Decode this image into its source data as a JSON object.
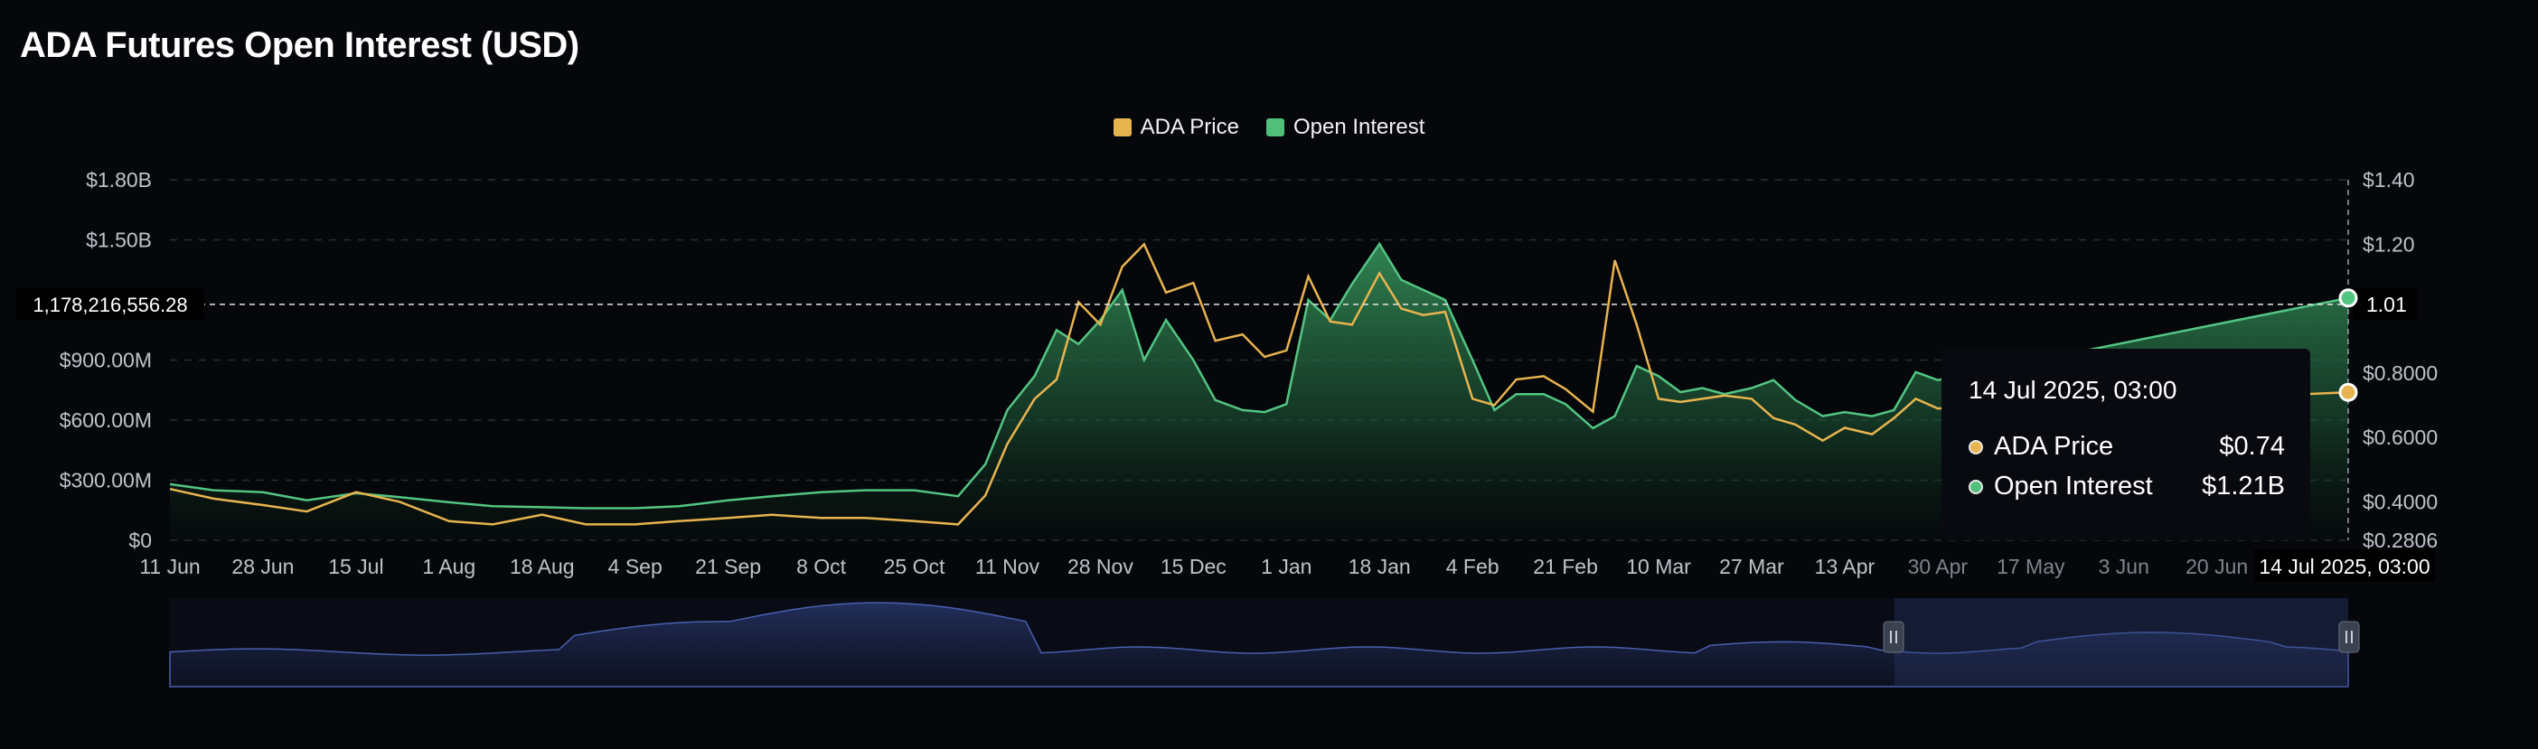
{
  "title": "ADA Futures Open Interest (USD)",
  "colors": {
    "price": "#e8b44f",
    "open_interest": "#3fae6a",
    "navigator": "#3c4f9a",
    "background": "#05070b"
  },
  "legend": [
    {
      "label": "ADA Price",
      "color": "#e8b44f"
    },
    {
      "label": "Open Interest",
      "color": "#4fbf7a"
    }
  ],
  "crosshair": {
    "left_value": "1,178,216,556.28",
    "right_value": "1.01",
    "x_value": "14 Jul 2025, 03:00"
  },
  "tooltip": {
    "date": "14 Jul 2025, 03:00",
    "rows": [
      {
        "label": "ADA Price",
        "value": "$0.74"
      },
      {
        "label": "Open Interest",
        "value": "$1.21B"
      }
    ]
  },
  "chart_data": {
    "type": "line",
    "title": "ADA Futures Open Interest (USD)",
    "x_ticks": [
      "11 Jun",
      "28 Jun",
      "15 Jul",
      "1 Aug",
      "18 Aug",
      "4 Sep",
      "21 Sep",
      "8 Oct",
      "25 Oct",
      "11 Nov",
      "28 Nov",
      "15 Dec",
      "1 Jan",
      "18 Jan",
      "4 Feb",
      "21 Feb",
      "10 Mar",
      "27 Mar",
      "13 Apr",
      "30 Apr",
      "17 May",
      "3 Jun",
      "20 Jun"
    ],
    "y_left_ticks": [
      "$1.80B",
      "$1.50B",
      "$900.00M",
      "$600.00M",
      "$300.00M",
      "$0"
    ],
    "y_left_tick_values": [
      1800000000,
      1500000000,
      900000000,
      600000000,
      300000000,
      0
    ],
    "y_right_ticks": [
      "$1.40",
      "$1.20",
      "$0.8000",
      "$0.6000",
      "$0.4000",
      "$0.2806"
    ],
    "y_right_tick_values": [
      1.4,
      1.2,
      0.8,
      0.6,
      0.4,
      0.2806
    ],
    "y_left_range": [
      0,
      1800000000
    ],
    "y_right_range": [
      0.2806,
      1.4
    ],
    "legend_position": "top-center",
    "grid": true,
    "series": [
      {
        "name": "Open Interest",
        "axis": "left",
        "points": [
          [
            "11 Jun",
            280000000
          ],
          [
            "19 Jun",
            250000000
          ],
          [
            "28 Jun",
            240000000
          ],
          [
            "6 Jul",
            200000000
          ],
          [
            "15 Jul",
            235000000
          ],
          [
            "23 Jul",
            215000000
          ],
          [
            "1 Aug",
            190000000
          ],
          [
            "9 Aug",
            170000000
          ],
          [
            "18 Aug",
            165000000
          ],
          [
            "26 Aug",
            160000000
          ],
          [
            "4 Sep",
            160000000
          ],
          [
            "12 Sep",
            170000000
          ],
          [
            "21 Sep",
            200000000
          ],
          [
            "29 Sep",
            220000000
          ],
          [
            "8 Oct",
            240000000
          ],
          [
            "16 Oct",
            250000000
          ],
          [
            "25 Oct",
            250000000
          ],
          [
            "2 Nov",
            220000000
          ],
          [
            "7 Nov",
            380000000
          ],
          [
            "11 Nov",
            650000000
          ],
          [
            "16 Nov",
            820000000
          ],
          [
            "20 Nov",
            1050000000
          ],
          [
            "24 Nov",
            980000000
          ],
          [
            "28 Nov",
            1100000000
          ],
          [
            "2 Dec",
            1250000000
          ],
          [
            "6 Dec",
            900000000
          ],
          [
            "10 Dec",
            1100000000
          ],
          [
            "15 Dec",
            900000000
          ],
          [
            "19 Dec",
            700000000
          ],
          [
            "24 Dec",
            650000000
          ],
          [
            "28 Dec",
            640000000
          ],
          [
            "1 Jan",
            680000000
          ],
          [
            "5 Jan",
            1200000000
          ],
          [
            "9 Jan",
            1100000000
          ],
          [
            "13 Jan",
            1280000000
          ],
          [
            "18 Jan",
            1480000000
          ],
          [
            "22 Jan",
            1300000000
          ],
          [
            "26 Jan",
            1250000000
          ],
          [
            "30 Jan",
            1200000000
          ],
          [
            "4 Feb",
            900000000
          ],
          [
            "8 Feb",
            650000000
          ],
          [
            "12 Feb",
            730000000
          ],
          [
            "17 Feb",
            730000000
          ],
          [
            "21 Feb",
            680000000
          ],
          [
            "26 Feb",
            560000000
          ],
          [
            "2 Mar",
            620000000
          ],
          [
            "6 Mar",
            870000000
          ],
          [
            "10 Mar",
            820000000
          ],
          [
            "14 Mar",
            740000000
          ],
          [
            "18 Mar",
            760000000
          ],
          [
            "22 Mar",
            730000000
          ],
          [
            "27 Mar",
            760000000
          ],
          [
            "31 Mar",
            800000000
          ],
          [
            "4 Apr",
            700000000
          ],
          [
            "9 Apr",
            620000000
          ],
          [
            "13 Apr",
            640000000
          ],
          [
            "18 Apr",
            620000000
          ],
          [
            "22 Apr",
            650000000
          ],
          [
            "26 Apr",
            840000000
          ],
          [
            "30 Apr",
            800000000
          ],
          [
            "14 Jul",
            1210000000
          ]
        ]
      },
      {
        "name": "ADA Price",
        "axis": "right",
        "points": [
          [
            "11 Jun",
            0.44
          ],
          [
            "19 Jun",
            0.41
          ],
          [
            "28 Jun",
            0.39
          ],
          [
            "6 Jul",
            0.37
          ],
          [
            "15 Jul",
            0.43
          ],
          [
            "23 Jul",
            0.4
          ],
          [
            "1 Aug",
            0.34
          ],
          [
            "9 Aug",
            0.33
          ],
          [
            "18 Aug",
            0.36
          ],
          [
            "26 Aug",
            0.33
          ],
          [
            "4 Sep",
            0.33
          ],
          [
            "12 Sep",
            0.34
          ],
          [
            "21 Sep",
            0.35
          ],
          [
            "29 Sep",
            0.36
          ],
          [
            "8 Oct",
            0.35
          ],
          [
            "16 Oct",
            0.35
          ],
          [
            "25 Oct",
            0.34
          ],
          [
            "2 Nov",
            0.33
          ],
          [
            "7 Nov",
            0.42
          ],
          [
            "11 Nov",
            0.58
          ],
          [
            "16 Nov",
            0.72
          ],
          [
            "20 Nov",
            0.78
          ],
          [
            "24 Nov",
            1.02
          ],
          [
            "28 Nov",
            0.95
          ],
          [
            "2 Dec",
            1.13
          ],
          [
            "6 Dec",
            1.2
          ],
          [
            "10 Dec",
            1.05
          ],
          [
            "15 Dec",
            1.08
          ],
          [
            "19 Dec",
            0.9
          ],
          [
            "24 Dec",
            0.92
          ],
          [
            "28 Dec",
            0.85
          ],
          [
            "1 Jan",
            0.87
          ],
          [
            "5 Jan",
            1.1
          ],
          [
            "9 Jan",
            0.96
          ],
          [
            "13 Jan",
            0.95
          ],
          [
            "18 Jan",
            1.11
          ],
          [
            "22 Jan",
            1.0
          ],
          [
            "26 Jan",
            0.98
          ],
          [
            "30 Jan",
            0.99
          ],
          [
            "4 Feb",
            0.72
          ],
          [
            "8 Feb",
            0.7
          ],
          [
            "12 Feb",
            0.78
          ],
          [
            "17 Feb",
            0.79
          ],
          [
            "21 Feb",
            0.75
          ],
          [
            "26 Feb",
            0.68
          ],
          [
            "2 Mar",
            1.15
          ],
          [
            "6 Mar",
            0.95
          ],
          [
            "10 Mar",
            0.72
          ],
          [
            "14 Mar",
            0.71
          ],
          [
            "18 Mar",
            0.72
          ],
          [
            "22 Mar",
            0.73
          ],
          [
            "27 Mar",
            0.72
          ],
          [
            "31 Mar",
            0.66
          ],
          [
            "4 Apr",
            0.64
          ],
          [
            "9 Apr",
            0.59
          ],
          [
            "13 Apr",
            0.63
          ],
          [
            "18 Apr",
            0.61
          ],
          [
            "22 Apr",
            0.66
          ],
          [
            "26 Apr",
            0.72
          ],
          [
            "30 Apr",
            0.69
          ],
          [
            "14 Jul",
            0.74
          ]
        ]
      }
    ]
  }
}
